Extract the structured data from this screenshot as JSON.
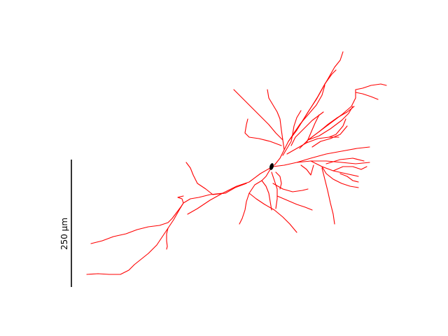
{
  "figure": {
    "background": "#ffffff",
    "neurite_color": "#ff0000",
    "soma_color": "#000000",
    "scale_bar": {
      "label": "250 μm",
      "color": "#000000"
    }
  }
}
